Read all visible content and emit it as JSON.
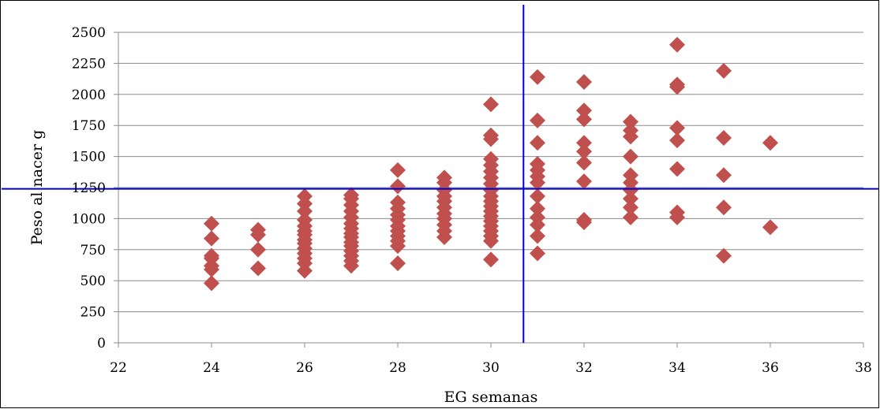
{
  "chart_data": {
    "type": "scatter",
    "title": "",
    "xlabel": "EG semanas",
    "ylabel": "Peso al nacer g",
    "xlim": [
      22,
      38
    ],
    "ylim": [
      0,
      2500
    ],
    "x_ticks": [
      22,
      24,
      26,
      28,
      30,
      32,
      34,
      36,
      38
    ],
    "y_ticks": [
      0,
      250,
      500,
      750,
      1000,
      1250,
      1500,
      1750,
      2000,
      2250,
      2500
    ],
    "grid": "horizontal",
    "legend": "none",
    "colors": {
      "marker": "#C0504D",
      "reference_line": "#0000CC",
      "grid": "#8C8C8C"
    },
    "reference_lines": {
      "vertical_x": 30.7,
      "horizontal_y": 1240
    },
    "series": [
      {
        "points": [
          [
            24,
            480
          ],
          [
            24,
            590
          ],
          [
            24,
            620
          ],
          [
            24,
            680
          ],
          [
            24,
            700
          ],
          [
            24,
            840
          ],
          [
            24,
            960
          ],
          [
            25,
            600
          ],
          [
            25,
            750
          ],
          [
            25,
            870
          ],
          [
            25,
            910
          ],
          [
            26,
            580
          ],
          [
            26,
            640
          ],
          [
            26,
            680
          ],
          [
            26,
            720
          ],
          [
            26,
            760
          ],
          [
            26,
            800
          ],
          [
            26,
            830
          ],
          [
            26,
            870
          ],
          [
            26,
            900
          ],
          [
            26,
            940
          ],
          [
            26,
            990
          ],
          [
            26,
            1060
          ],
          [
            26,
            1120
          ],
          [
            26,
            1180
          ],
          [
            27,
            620
          ],
          [
            27,
            660
          ],
          [
            27,
            700
          ],
          [
            27,
            740
          ],
          [
            27,
            780
          ],
          [
            27,
            810
          ],
          [
            27,
            850
          ],
          [
            27,
            880
          ],
          [
            27,
            920
          ],
          [
            27,
            960
          ],
          [
            27,
            1010
          ],
          [
            27,
            1060
          ],
          [
            27,
            1110
          ],
          [
            27,
            1160
          ],
          [
            27,
            1190
          ],
          [
            28,
            640
          ],
          [
            28,
            780
          ],
          [
            28,
            820
          ],
          [
            28,
            860
          ],
          [
            28,
            900
          ],
          [
            28,
            940
          ],
          [
            28,
            990
          ],
          [
            28,
            1030
          ],
          [
            28,
            1080
          ],
          [
            28,
            1130
          ],
          [
            28,
            1260
          ],
          [
            28,
            1390
          ],
          [
            29,
            850
          ],
          [
            29,
            900
          ],
          [
            29,
            950
          ],
          [
            29,
            1000
          ],
          [
            29,
            1040
          ],
          [
            29,
            1090
          ],
          [
            29,
            1140
          ],
          [
            29,
            1180
          ],
          [
            29,
            1230
          ],
          [
            29,
            1290
          ],
          [
            29,
            1330
          ],
          [
            30,
            670
          ],
          [
            30,
            820
          ],
          [
            30,
            860
          ],
          [
            30,
            900
          ],
          [
            30,
            940
          ],
          [
            30,
            980
          ],
          [
            30,
            1020
          ],
          [
            30,
            1060
          ],
          [
            30,
            1100
          ],
          [
            30,
            1140
          ],
          [
            30,
            1180
          ],
          [
            30,
            1230
          ],
          [
            30,
            1280
          ],
          [
            30,
            1330
          ],
          [
            30,
            1380
          ],
          [
            30,
            1430
          ],
          [
            30,
            1480
          ],
          [
            30,
            1640
          ],
          [
            30,
            1670
          ],
          [
            30,
            1920
          ],
          [
            31,
            720
          ],
          [
            31,
            860
          ],
          [
            31,
            950
          ],
          [
            31,
            1010
          ],
          [
            31,
            1080
          ],
          [
            31,
            1180
          ],
          [
            31,
            1290
          ],
          [
            31,
            1340
          ],
          [
            31,
            1390
          ],
          [
            31,
            1440
          ],
          [
            31,
            1610
          ],
          [
            31,
            1790
          ],
          [
            31,
            2140
          ],
          [
            32,
            970
          ],
          [
            32,
            990
          ],
          [
            32,
            1300
          ],
          [
            32,
            1450
          ],
          [
            32,
            1540
          ],
          [
            32,
            1610
          ],
          [
            32,
            1800
          ],
          [
            32,
            1870
          ],
          [
            32,
            2100
          ],
          [
            33,
            1010
          ],
          [
            33,
            1090
          ],
          [
            33,
            1160
          ],
          [
            33,
            1230
          ],
          [
            33,
            1290
          ],
          [
            33,
            1350
          ],
          [
            33,
            1500
          ],
          [
            33,
            1660
          ],
          [
            33,
            1710
          ],
          [
            33,
            1780
          ],
          [
            34,
            1010
          ],
          [
            34,
            1050
          ],
          [
            34,
            1400
          ],
          [
            34,
            1630
          ],
          [
            34,
            1730
          ],
          [
            34,
            2060
          ],
          [
            34,
            2080
          ],
          [
            34,
            2400
          ],
          [
            35,
            700
          ],
          [
            35,
            1090
          ],
          [
            35,
            1350
          ],
          [
            35,
            1650
          ],
          [
            35,
            2190
          ],
          [
            36,
            930
          ],
          [
            36,
            1610
          ]
        ]
      }
    ]
  }
}
